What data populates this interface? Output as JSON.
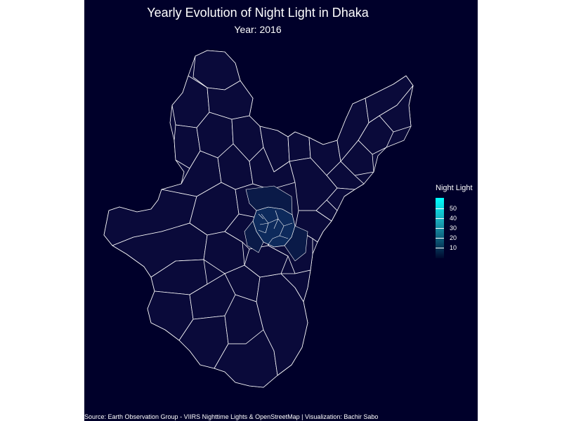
{
  "title": "Yearly Evolution of Night Light in Dhaka",
  "subtitle": "Year: 2016",
  "legend": {
    "title": "Night Light",
    "ticks": [
      {
        "value": 50,
        "label": "50"
      },
      {
        "value": 40,
        "label": "40"
      },
      {
        "value": 30,
        "label": "30"
      },
      {
        "value": 20,
        "label": "20"
      },
      {
        "value": 10,
        "label": "10"
      }
    ],
    "colors": {
      "high": "#00ffff",
      "low": "#00082e"
    }
  },
  "source": "Source: Earth Observation Group - VIIRS Nighttime Lights & OpenStreetMap | Visualization: Bachir Sabo",
  "colors": {
    "background": "#00002a",
    "border": "#ffffff",
    "region_fill": "#0a0a3a",
    "bright_core": "#0d2a5c"
  }
}
